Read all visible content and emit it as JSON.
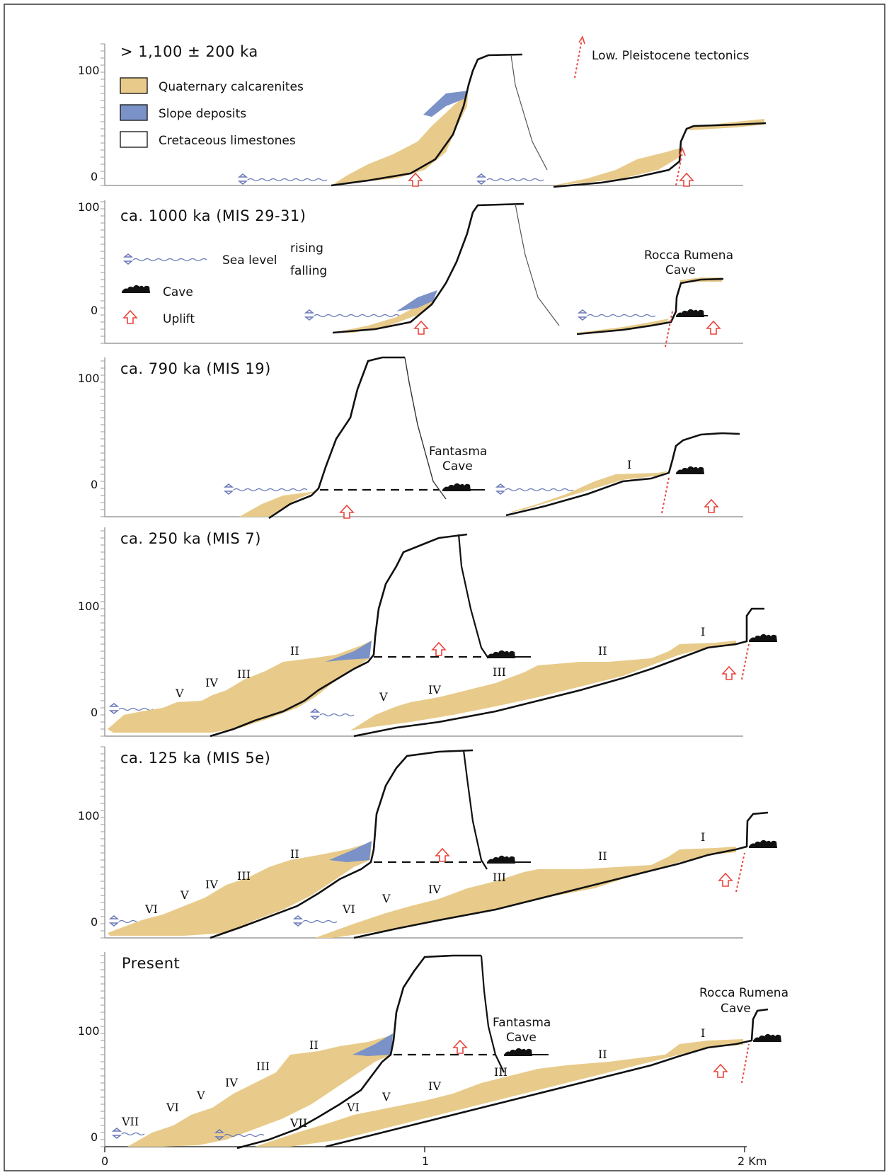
{
  "colors": {
    "calcarenite": "#e8cb8a",
    "slope": "#7b92c8",
    "limestone_line": "#111111",
    "sea": "#6a79b8",
    "uplift": "#e8453c",
    "fault": "#e8453c"
  },
  "legend": {
    "calcarenites": "Quaternary calcarenites",
    "slope": "Slope deposits",
    "limestones": "Cretaceous limestones",
    "tectonics": "Low. Pleistocene tectonics",
    "sea_level": "Sea level",
    "rising": "rising",
    "falling": "falling",
    "cave": "Cave",
    "uplift": "Uplift"
  },
  "axis": {
    "x_ticks": [
      "0",
      "1",
      "2 Km"
    ],
    "y100": "100",
    "y0": "0"
  },
  "panels": [
    {
      "title": "> 1,100 ± 200 ka"
    },
    {
      "title": "ca. 1000 ka (MIS 29-31)"
    },
    {
      "title": "ca. 790 ka (MIS 19)"
    },
    {
      "title": "ca. 250 ka (MIS 7)"
    },
    {
      "title": "ca. 125 ka (MIS 5e)"
    },
    {
      "title": "Present"
    }
  ],
  "caves": {
    "rocca_line1": "Rocca Rumena",
    "rocca_line2": "Cave",
    "fantasma_line1": "Fantasma",
    "fantasma_line2": "Cave"
  },
  "terraces": {
    "I": "I",
    "II": "II",
    "III": "III",
    "IV": "IV",
    "V": "V",
    "VI": "VI",
    "VII": "VII"
  }
}
